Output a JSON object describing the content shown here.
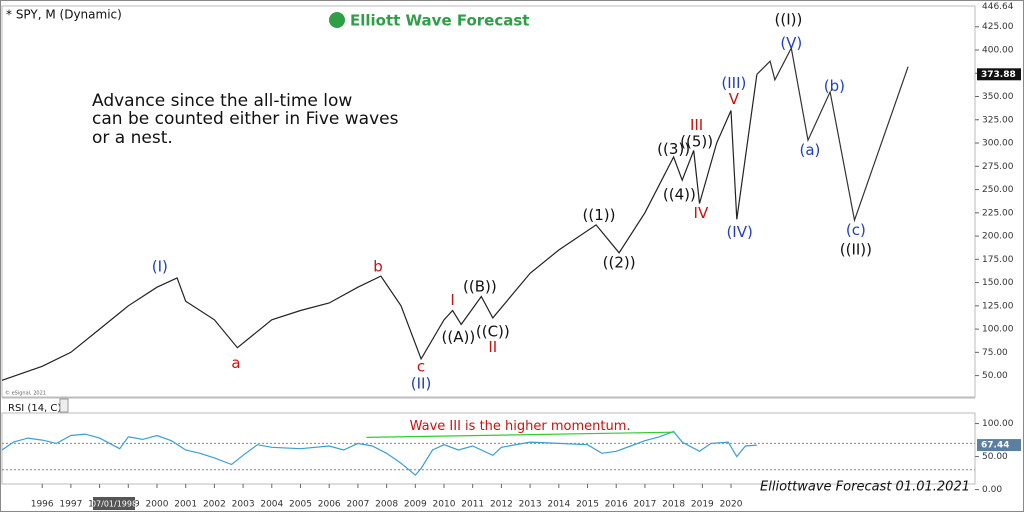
{
  "header": {
    "symbol": "* SPY, M (Dynamic)",
    "logo": "Elliott Wave Forecast",
    "note": [
      "Advance since the all-time low",
      "can be counted either in Five waves",
      "or a nest."
    ],
    "credit": "© eSignal, 2021",
    "footer": "Elliottwave Forecast 01.01.2021",
    "cursor_date": "07/01/1998"
  },
  "chart_data": [
    {
      "type": "line",
      "xlim": [
        1994.6,
        2028.5
      ],
      "ylim": [
        27,
        443
      ],
      "xticks": [
        1996,
        1997,
        1998,
        1999,
        2000,
        2001,
        2002,
        2003,
        2004,
        2005,
        2006,
        2007,
        2008,
        2009,
        2010,
        2011,
        2012,
        2013,
        2014,
        2015,
        2016,
        2017,
        2018,
        2019,
        2020
      ],
      "yticks": [
        {
          "value": 50,
          "label": "50.00"
        },
        {
          "value": 75,
          "label": "75.00"
        },
        {
          "value": 100,
          "label": "100.00"
        },
        {
          "value": 125,
          "label": "125.00"
        },
        {
          "value": 150,
          "label": "150.00"
        },
        {
          "value": 175,
          "label": "175.00"
        },
        {
          "value": 200,
          "label": "200.00"
        },
        {
          "value": 225,
          "label": "225.00"
        },
        {
          "value": 250,
          "label": "250.00"
        },
        {
          "value": 275,
          "label": "275.00"
        },
        {
          "value": 300,
          "label": "300.00"
        },
        {
          "value": 325,
          "label": "325.00"
        },
        {
          "value": 350,
          "label": "350.00"
        },
        {
          "value": 375,
          "label": "375.00"
        },
        {
          "value": 400,
          "label": "400.00"
        },
        {
          "value": 425,
          "label": "425.00"
        }
      ],
      "top_value": 446.64,
      "last_value": 373.88,
      "series": [
        {
          "color": "#222222",
          "x": [
            1994.6,
            1996,
            1997,
            1998,
            1999,
            2000,
            2000.7,
            2001,
            2002,
            2002.8,
            2004,
            2005,
            2006,
            2007,
            2007.8,
            2008.5,
            2009.2,
            2010,
            2010.3,
            2010.6,
            2011.3,
            2011.7,
            2013,
            2014,
            2015.3,
            2016.1,
            2017,
            2018,
            2018.3,
            2018.7,
            2018.9,
            2019.5,
            2020,
            2020.2,
            2020.9
          ],
          "values": [
            45,
            60,
            75,
            100,
            125,
            145,
            155,
            130,
            110,
            80,
            110,
            120,
            128,
            145,
            157,
            125,
            68,
            110,
            120,
            105,
            135,
            112,
            160,
            185,
            212,
            182,
            225,
            285,
            260,
            292,
            235,
            300,
            335,
            218,
            373.88
          ]
        },
        {
          "color": "#333333",
          "x": [
            2020.9,
            2021.36,
            2021.53,
            2022.1,
            2022.68,
            2023.45,
            2024.3,
            2026.17
          ],
          "values": [
            373.88,
            388,
            368,
            402,
            303,
            355,
            217,
            382
          ]
        }
      ],
      "annotations": [
        {
          "text": "(I)",
          "x": 2000.1,
          "y": 167,
          "color": "#1f3fbf"
        },
        {
          "text": "a",
          "x": 2002.75,
          "y": 63,
          "color": "#cc1111"
        },
        {
          "text": "b",
          "x": 2007.7,
          "y": 167,
          "color": "#cc1111"
        },
        {
          "text": "c",
          "x": 2009.2,
          "y": 59,
          "color": "#cc1111"
        },
        {
          "text": "(II)",
          "x": 2009.2,
          "y": 41,
          "color": "#1f3fbf"
        },
        {
          "text": "I",
          "x": 2010.3,
          "y": 131,
          "color": "#cc1111"
        },
        {
          "text": "((A))",
          "x": 2010.5,
          "y": 91,
          "color": "#111111"
        },
        {
          "text": "((B))",
          "x": 2011.25,
          "y": 145,
          "color": "#111111"
        },
        {
          "text": "((C))",
          "x": 2011.7,
          "y": 97,
          "color": "#111111"
        },
        {
          "text": "II",
          "x": 2011.7,
          "y": 80,
          "color": "#cc1111"
        },
        {
          "text": "((1))",
          "x": 2015.4,
          "y": 222,
          "color": "#111111"
        },
        {
          "text": "((2))",
          "x": 2016.1,
          "y": 171,
          "color": "#111111"
        },
        {
          "text": "((3))",
          "x": 2018.0,
          "y": 293,
          "color": "#111111"
        },
        {
          "text": "((5))",
          "x": 2018.8,
          "y": 301,
          "color": "#111111"
        },
        {
          "text": "((4))",
          "x": 2018.2,
          "y": 244,
          "color": "#111111"
        },
        {
          "text": "III",
          "x": 2018.8,
          "y": 319,
          "color": "#cc1111"
        },
        {
          "text": "IV",
          "x": 2018.95,
          "y": 224,
          "color": "#cc1111"
        },
        {
          "text": "(III)",
          "x": 2020.1,
          "y": 364,
          "color": "#1f3fbf"
        },
        {
          "text": "V",
          "x": 2020.1,
          "y": 347,
          "color": "#cc1111"
        },
        {
          "text": "(IV)",
          "x": 2020.3,
          "y": 204,
          "color": "#1f3fbf"
        },
        {
          "text": "((I))",
          "x": 2022.0,
          "y": 432,
          "color": "#111111"
        },
        {
          "text": "(V)",
          "x": 2022.1,
          "y": 407,
          "color": "#1f3fbf"
        },
        {
          "text": "(a)",
          "x": 2022.75,
          "y": 292,
          "color": "#1f3fbf"
        },
        {
          "text": "(b)",
          "x": 2023.6,
          "y": 361,
          "color": "#1f3fbf"
        },
        {
          "text": "(c)",
          "x": 2024.35,
          "y": 206,
          "color": "#1f3fbf"
        },
        {
          "text": "((II))",
          "x": 2024.35,
          "y": 185,
          "color": "#111111"
        }
      ]
    },
    {
      "type": "line",
      "title": "RSI (14, C)",
      "xlim": [
        1994.6,
        2028.5
      ],
      "ylim": [
        10,
        116
      ],
      "yticks": [
        {
          "value": 100,
          "label": "100.00"
        },
        {
          "value": 50,
          "label": "50.00"
        },
        {
          "value": 0,
          "label": "0.00"
        }
      ],
      "levels": [
        70,
        30
      ],
      "last_value": 67.44,
      "series": [
        {
          "color": "#3a9fd6",
          "x": [
            1994.6,
            1995,
            1995.5,
            1996,
            1996.5,
            1997,
            1997.5,
            1998,
            1998.7,
            1999,
            1999.5,
            2000,
            2000.5,
            2001,
            2001.5,
            2002,
            2002.6,
            2003,
            2003.5,
            2004,
            2005,
            2006,
            2006.5,
            2007,
            2007.5,
            2008,
            2008.5,
            2009.0,
            2009.2,
            2009.6,
            2010,
            2010.5,
            2011,
            2011.7,
            2012,
            2013,
            2014,
            2015,
            2015.5,
            2016,
            2016.5,
            2017,
            2017.5,
            2018.0,
            2018.3,
            2018.9,
            2019.3,
            2019.9,
            2020.2,
            2020.5,
            2020.9
          ],
          "values": [
            60,
            72,
            78,
            75,
            70,
            82,
            84,
            78,
            62,
            80,
            76,
            82,
            74,
            60,
            55,
            48,
            38,
            52,
            68,
            64,
            62,
            66,
            60,
            70,
            66,
            55,
            40,
            22,
            32,
            60,
            68,
            60,
            66,
            52,
            64,
            72,
            70,
            68,
            55,
            58,
            66,
            74,
            80,
            88,
            72,
            58,
            70,
            72,
            50,
            66,
            67.44
          ]
        },
        {
          "color": "#33cc33",
          "x": [
            2007.3,
            2018.0
          ],
          "values": [
            79,
            87
          ]
        }
      ],
      "annotations": [
        {
          "text": "Wave III is the higher momentum.",
          "x": 2012.65,
          "y": 95.5,
          "color": "#cc1111"
        }
      ]
    }
  ]
}
